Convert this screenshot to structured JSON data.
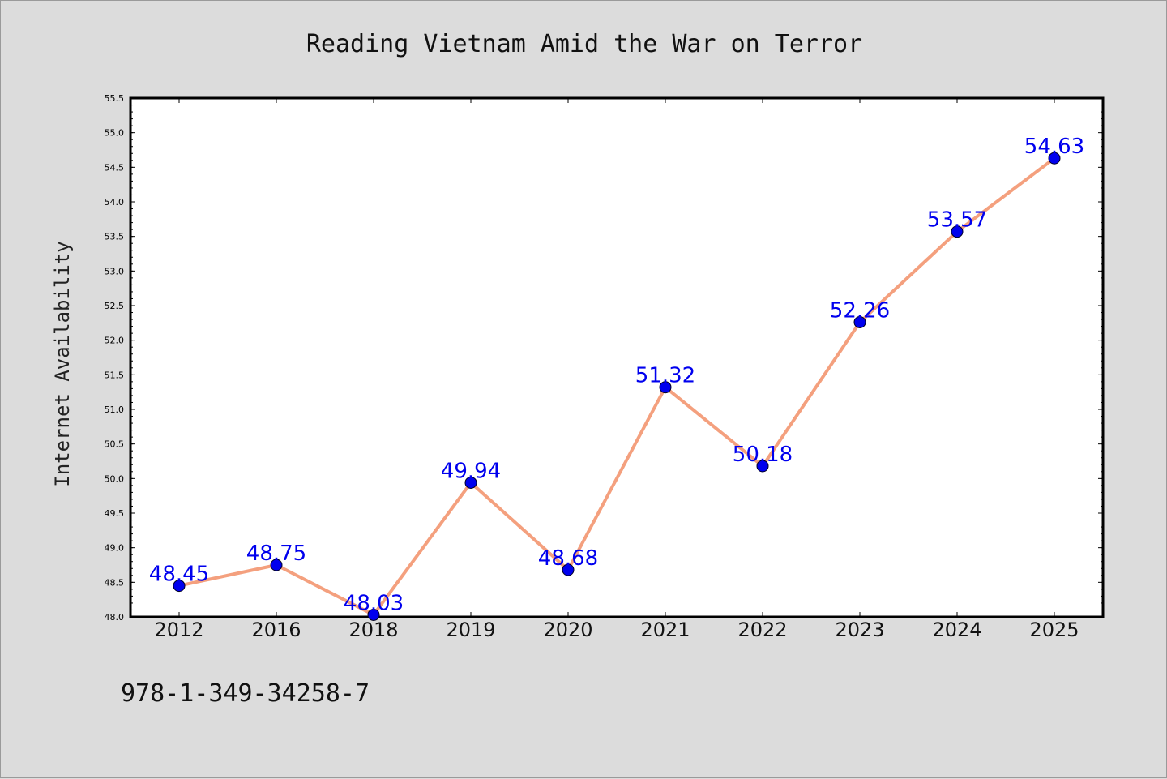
{
  "chart_data": {
    "type": "line",
    "title": "Reading Vietnam Amid the War on Terror",
    "xlabel": "",
    "ylabel": "Internet Availability",
    "categories": [
      "2012",
      "2016",
      "2018",
      "2019",
      "2020",
      "2021",
      "2022",
      "2023",
      "2024",
      "2025"
    ],
    "series": [
      {
        "values": [
          48.45,
          48.75,
          48.03,
          49.94,
          48.68,
          51.32,
          50.18,
          52.26,
          53.57,
          54.63
        ],
        "line_color": "#f4a07e",
        "marker_color": "#0000ee"
      }
    ],
    "data_labels": [
      "48.45",
      "48.75",
      "48.03",
      "49.94",
      "48.68",
      "51.32",
      "50.18",
      "52.26",
      "53.57",
      "54.63"
    ],
    "ylim": [
      48.0,
      55.5
    ],
    "yticks": [
      "48.0",
      "48.5",
      "49.0",
      "49.5",
      "50.0",
      "50.5",
      "51.0",
      "51.5",
      "52.0",
      "52.5",
      "53.0",
      "53.5",
      "54.0",
      "54.5",
      "55.0",
      "55.5"
    ],
    "grid": false,
    "legend": "none"
  },
  "footer": {
    "isbn": "978-1-349-34258-7"
  },
  "colors": {
    "background": "#dcdcdc",
    "plot_background": "#ffffff"
  }
}
